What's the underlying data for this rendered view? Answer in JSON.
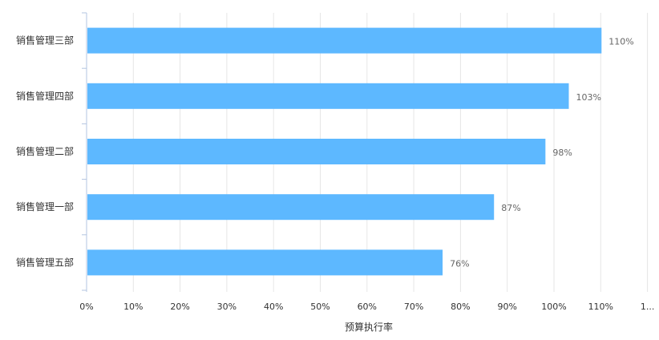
{
  "chart_data": {
    "type": "bar",
    "orientation": "horizontal",
    "categories": [
      "销售管理三部",
      "销售管理四部",
      "销售管理二部",
      "销售管理一部",
      "销售管理五部"
    ],
    "values": [
      110,
      103,
      98,
      87,
      76
    ],
    "value_labels": [
      "110%",
      "103%",
      "98%",
      "87%",
      "76%"
    ],
    "x_ticks": [
      "0%",
      "10%",
      "20%",
      "30%",
      "40%",
      "50%",
      "60%",
      "70%",
      "80%",
      "90%",
      "100%",
      "110%",
      "1..."
    ],
    "xlim": [
      0,
      120
    ],
    "xlabel": "预算执行率",
    "ylabel": "",
    "grid": "vertical",
    "colors": {
      "bar": "#5db8ff",
      "grid": "#e6e6e6",
      "axis": "#b3c4e0"
    }
  }
}
